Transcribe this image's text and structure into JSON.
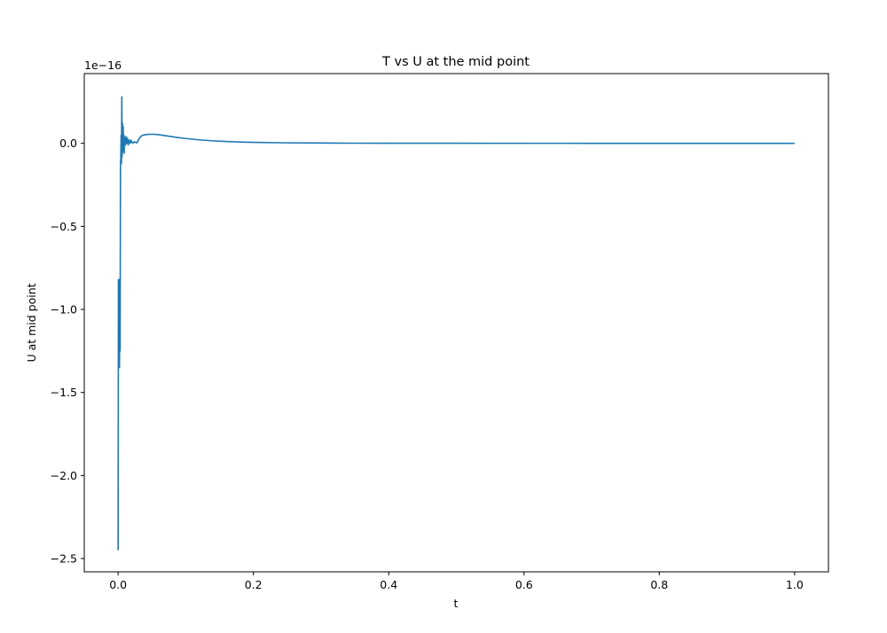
{
  "chart_data": {
    "type": "line",
    "title": "T vs U at the mid point",
    "xlabel": "t",
    "ylabel": "U at mid point",
    "y_offset_label": "1e−16",
    "xlim": [
      -0.05,
      1.05
    ],
    "ylim": [
      -2.58,
      0.42
    ],
    "xticks": [
      {
        "value": 0.0,
        "label": "0.0"
      },
      {
        "value": 0.2,
        "label": "0.2"
      },
      {
        "value": 0.4,
        "label": "0.4"
      },
      {
        "value": 0.6,
        "label": "0.6"
      },
      {
        "value": 0.8,
        "label": "0.8"
      },
      {
        "value": 1.0,
        "label": "1.0"
      }
    ],
    "yticks": [
      {
        "value": 0.0,
        "label": "0.0"
      },
      {
        "value": -0.5,
        "label": "−0.5"
      },
      {
        "value": -1.0,
        "label": "−1.0"
      },
      {
        "value": -1.5,
        "label": "−1.5"
      },
      {
        "value": -2.0,
        "label": "−2.0"
      },
      {
        "value": -2.5,
        "label": "−2.5"
      }
    ],
    "grid": false,
    "color": "#1f77b4",
    "series": [
      {
        "x": [
          0.0,
          0.0005,
          0.001,
          0.0015,
          0.002,
          0.0025,
          0.003,
          0.0035,
          0.004,
          0.0045,
          0.005,
          0.0055,
          0.006,
          0.0065,
          0.007,
          0.0075,
          0.008,
          0.0085,
          0.009,
          0.0095,
          0.01,
          0.011,
          0.012,
          0.013,
          0.014,
          0.015,
          0.016,
          0.017,
          0.018,
          0.019,
          0.02,
          0.022,
          0.024,
          0.026,
          0.028,
          0.03,
          0.033,
          0.036,
          0.04,
          0.045,
          0.05,
          0.055,
          0.06,
          0.07,
          0.08,
          0.09,
          0.1,
          0.12,
          0.14,
          0.16,
          0.18,
          0.2,
          0.25,
          0.3,
          0.35,
          0.4,
          0.5,
          0.6,
          0.7,
          0.8,
          0.9,
          1.0
        ],
        "y": [
          -2.45,
          -0.82,
          -1.32,
          -0.82,
          -1.35,
          -1.05,
          -1.25,
          -0.15,
          -0.08,
          0.05,
          -0.12,
          0.28,
          -0.08,
          0.12,
          -0.05,
          0.1,
          -0.03,
          0.05,
          -0.06,
          0.04,
          0.02,
          -0.01,
          0.04,
          0.0,
          0.03,
          -0.01,
          0.02,
          0.01,
          0.0,
          0.02,
          0.01,
          0.0,
          0.01,
          0.005,
          0.003,
          0.02,
          0.04,
          0.048,
          0.052,
          0.054,
          0.055,
          0.054,
          0.052,
          0.046,
          0.04,
          0.034,
          0.029,
          0.021,
          0.015,
          0.011,
          0.008,
          0.006,
          0.003,
          0.002,
          0.001,
          0.0008,
          0.0005,
          0.0003,
          0.0002,
          0.0001,
          0.0001,
          0.0
        ]
      }
    ]
  }
}
